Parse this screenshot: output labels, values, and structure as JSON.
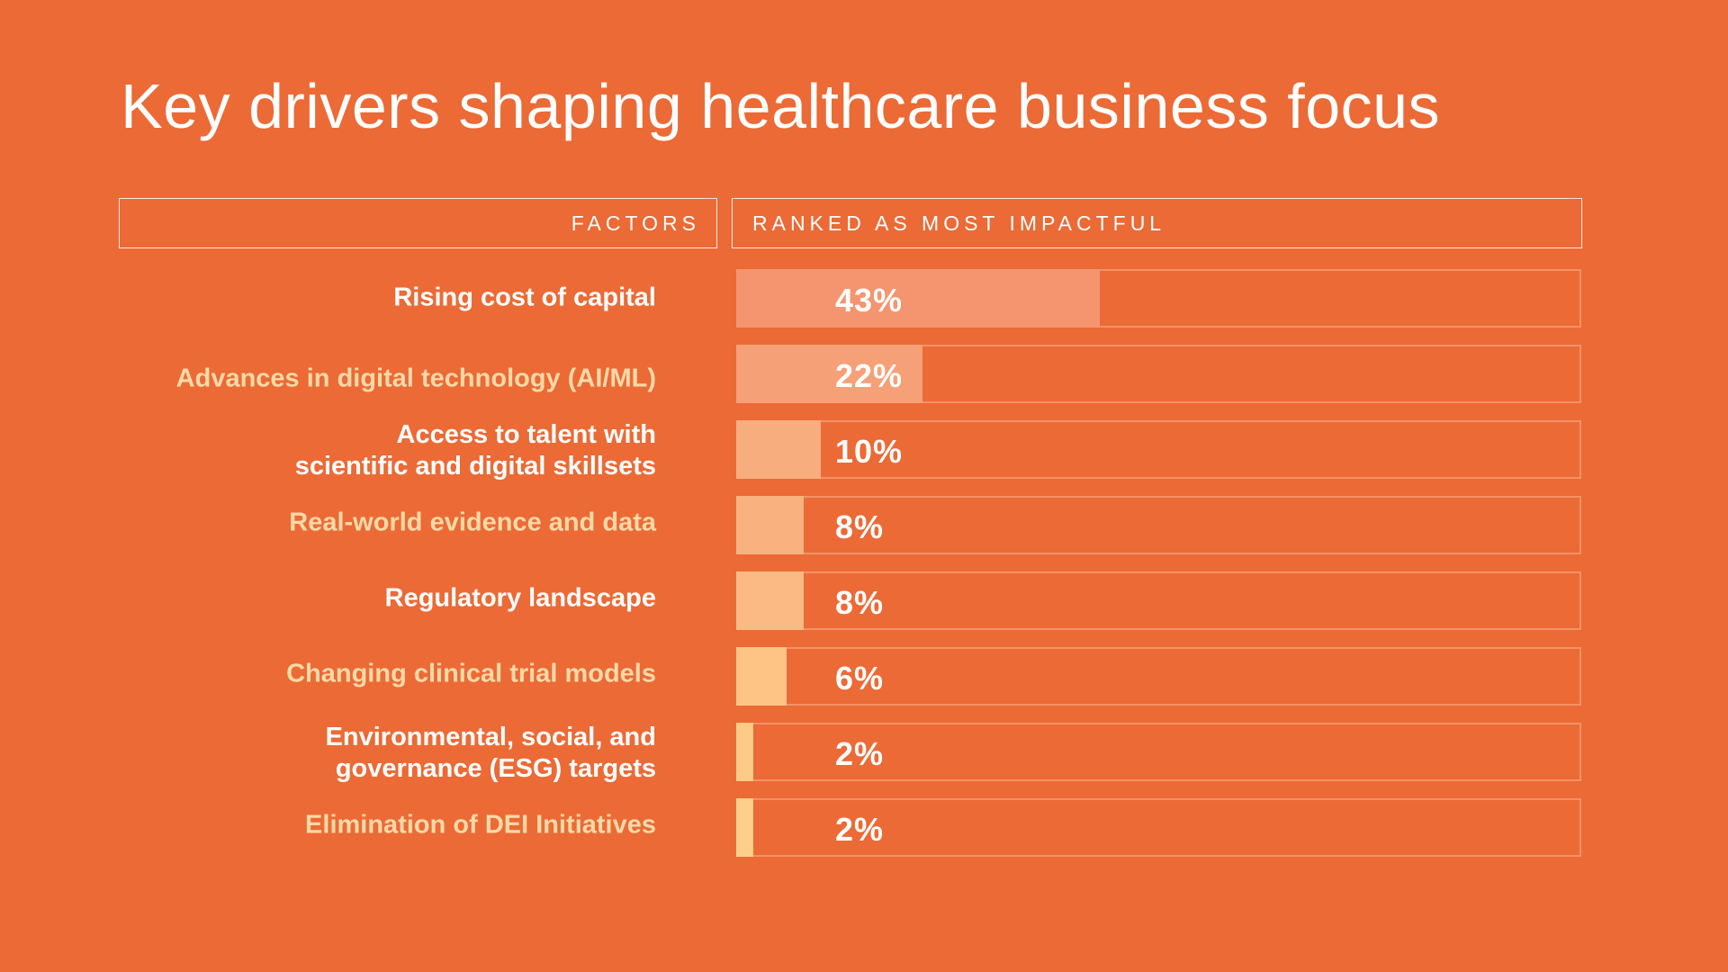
{
  "chart_data": {
    "type": "bar",
    "orientation": "horizontal",
    "title": "Key drivers shaping healthcare business focus",
    "column_headers": {
      "factors": "FACTORS",
      "ranked": "RANKED AS MOST IMPACTFUL"
    },
    "categories": [
      "Rising cost of capital",
      "Advances in digital technology (AI/ML)",
      "Access to talent with\nscientific and digital skillsets",
      "Real-world evidence and data",
      "Regulatory landscape",
      "Changing clinical trial models",
      "Environmental, social, and\ngovernance (ESG) targets",
      "Elimination of DEI Initiatives"
    ],
    "values": [
      43,
      22,
      10,
      8,
      8,
      6,
      2,
      2
    ],
    "value_labels": [
      "43%",
      "22%",
      "10%",
      "8%",
      "8%",
      "6%",
      "2%",
      "2%"
    ],
    "xlim": [
      0,
      100
    ],
    "bar_colors": [
      "#F49570",
      "#F6A077",
      "#F8AD7E",
      "#F9B27F",
      "#FBBA83",
      "#FDC485",
      "#FDCB88",
      "#FECF8A"
    ],
    "label_colors": [
      "#FFFFFF",
      "#FDD9A8",
      "#FFFFFF",
      "#FDD9A8",
      "#FFFFFF",
      "#FDD9A8",
      "#FFFFFF",
      "#FDD9A8"
    ],
    "grid": false,
    "legend": "none"
  },
  "colors": {
    "background": "#EC6A35",
    "text": "#FFFFFF"
  }
}
